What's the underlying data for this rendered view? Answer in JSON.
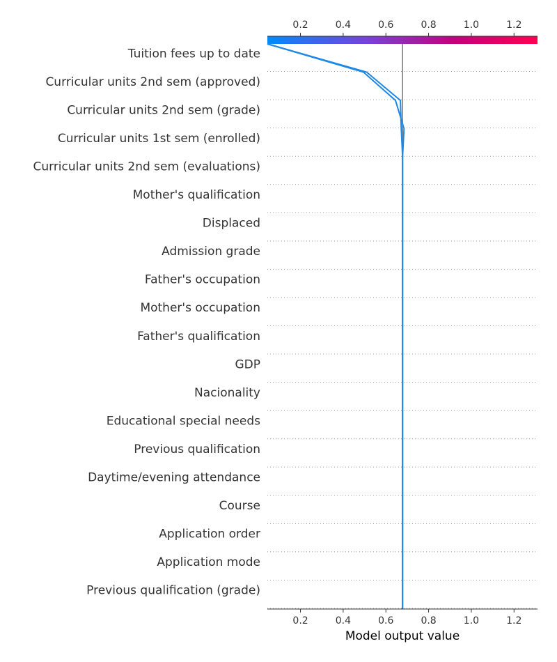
{
  "chart_data": {
    "type": "line",
    "title": "",
    "xlabel": "Model output value",
    "ylabel": "",
    "xlim": [
      0.045,
      1.31
    ],
    "xticks": [
      0.2,
      0.4,
      0.6,
      0.8,
      1.0,
      1.2
    ],
    "xtick_labels": [
      "0.2",
      "0.4",
      "0.6",
      "0.8",
      "1.0",
      "1.2"
    ],
    "base_value": 0.678,
    "grid": "dotted horizontal separators",
    "colorbar": {
      "position": "top",
      "range": [
        0.045,
        1.31
      ],
      "colors": [
        "#008bfb",
        "#7b3fd6",
        "#c4007c",
        "#ff0051"
      ]
    },
    "features": [
      "Tuition fees up to date",
      "Curricular units 2nd sem (approved)",
      "Curricular units 2nd sem (grade)",
      "Curricular units 1st sem (enrolled)",
      "Curricular units 2nd sem (evaluations)",
      "Mother's qualification",
      "Displaced",
      "Admission grade",
      "Father's occupation",
      "Mother's occupation",
      "Father's qualification",
      "GDP",
      "Nacionality",
      "Educational special needs",
      "Previous qualification",
      "Daytime/evening attendance",
      "Course",
      "Application order",
      "Application mode",
      "Previous qualification (grade)"
    ],
    "series": [
      {
        "color": "#1e88e5",
        "values": [
          0.045,
          0.495,
          0.645,
          0.685,
          0.678,
          0.678,
          0.678,
          0.678,
          0.678,
          0.678,
          0.678,
          0.678,
          0.678,
          0.678,
          0.678,
          0.678,
          0.678,
          0.678,
          0.678,
          0.678,
          0.678
        ]
      },
      {
        "color": "#1e88e5",
        "values": [
          0.045,
          0.51,
          0.668,
          0.672,
          0.678,
          0.678,
          0.678,
          0.678,
          0.678,
          0.678,
          0.678,
          0.678,
          0.678,
          0.678,
          0.678,
          0.678,
          0.678,
          0.678,
          0.678,
          0.678,
          0.678
        ]
      }
    ]
  }
}
